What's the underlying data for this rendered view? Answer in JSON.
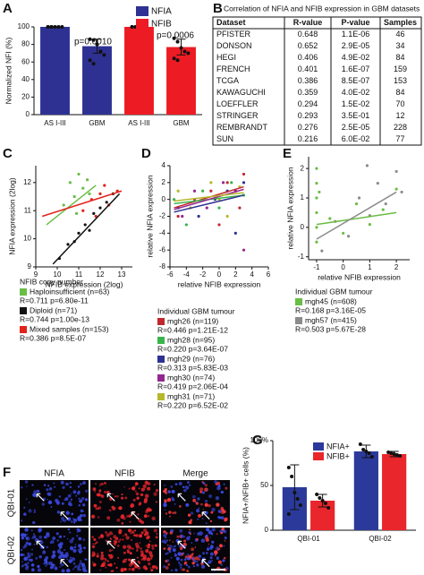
{
  "chart_data": [
    {
      "panel": "A",
      "type": "bar",
      "ylabel": "Normalized NFI (%)",
      "categories": [
        "AS I-III",
        "GBM",
        "AS I-III",
        "GBM"
      ],
      "ylim": [
        0,
        100
      ],
      "yticks": [
        0,
        20,
        40,
        60,
        80,
        100
      ],
      "series": [
        {
          "name": "NFIA",
          "color": "#2e3192",
          "values": [
            100,
            78,
            null,
            null
          ],
          "errors": [
            0,
            8,
            null,
            null
          ],
          "points": [
            [
              100,
              100,
              100,
              100,
              100,
              100,
              100
            ],
            [
              86,
              85,
              80,
              72,
              68,
              62,
              58
            ],
            null,
            null
          ]
        },
        {
          "name": "NFIB",
          "color": "#ed1c24",
          "values": [
            null,
            null,
            100,
            77
          ],
          "errors": [
            null,
            null,
            0,
            9
          ],
          "points": [
            null,
            null,
            [
              100,
              100,
              100,
              100,
              100,
              100,
              100
            ],
            [
              87,
              83,
              76,
              72,
              70,
              64,
              62
            ]
          ]
        }
      ],
      "annotations": [
        "p=0.0010",
        "p=0.0006"
      ]
    },
    {
      "panel": "C",
      "type": "scatter",
      "xlabel": "NFIB expression (2log)",
      "ylabel": "NFIA expression (2log)",
      "xlim": [
        9,
        13.5
      ],
      "xticks": [
        9,
        10,
        11,
        12,
        13
      ],
      "ylim": [
        9,
        12.6
      ],
      "yticks": [
        9,
        10,
        11,
        12
      ],
      "legend_title": "NFIB copy number",
      "series": [
        {
          "name": "Haploinsufficient (n=63)",
          "stats": "R=0.711 p=6.80e-11",
          "color": "#6abd45",
          "x": [
            10.3,
            10.6,
            10.8,
            11.0,
            11.2,
            11.4,
            10.9,
            11.5
          ],
          "y": [
            11.2,
            12.0,
            11.5,
            12.3,
            11.8,
            12.1,
            10.9,
            11.6
          ],
          "fit": {
            "x": [
              9.5,
              11.8
            ],
            "y": [
              10.5,
              11.9
            ]
          }
        },
        {
          "name": "Diploid (n=71)",
          "stats": "R=0.744 p=1.00e-13",
          "color": "#111111",
          "x": [
            10.1,
            10.5,
            11.0,
            11.3,
            11.7,
            12.0,
            12.3,
            12.6,
            11.5,
            10.8
          ],
          "y": [
            9.3,
            9.8,
            10.2,
            10.5,
            10.9,
            11.1,
            11.3,
            11.6,
            10.3,
            9.9
          ],
          "fit": {
            "x": [
              9.8,
              12.9
            ],
            "y": [
              9.1,
              11.6
            ]
          }
        },
        {
          "name": "Mixed samples (n=153)",
          "stats": "R=0.386 p=8.5E-07",
          "color": "#e2231a",
          "x": [
            11.2,
            11.6,
            12.0,
            12.4,
            12.8,
            11.8,
            12.2
          ],
          "y": [
            11.0,
            11.4,
            11.6,
            11.2,
            11.7,
            10.8,
            11.9
          ],
          "fit": {
            "x": [
              9.3,
              13.0
            ],
            "y": [
              10.8,
              11.7
            ]
          }
        }
      ]
    },
    {
      "panel": "D",
      "type": "scatter",
      "xlabel": "relative NFIB expression",
      "ylabel": "relative NFIA expression",
      "xlim": [
        -6,
        6
      ],
      "xticks": [
        -6,
        -4,
        -2,
        0,
        2,
        4,
        6
      ],
      "ylim": [
        -8,
        4
      ],
      "yticks": [
        -8,
        -6,
        -4,
        -2,
        0,
        2,
        4
      ],
      "legend_title": "Individual GBM tumour",
      "series": [
        {
          "name": "mgh26 (n=119)",
          "stats": "R=0.446 p=1.21E-12",
          "color": "#c1272d",
          "x": [
            -5,
            -3,
            -1,
            0,
            1,
            2,
            3,
            2.5
          ],
          "y": [
            -2,
            0,
            1,
            -3,
            2,
            1,
            3,
            -1
          ],
          "fit": {
            "x": [
              -5.5,
              3
            ],
            "y": [
              -1,
              1.5
            ]
          }
        },
        {
          "name": "mgh28 (n=95)",
          "stats": "R=0.220 p=3.64E-07",
          "color": "#39b54a",
          "x": [
            -5.5,
            -4,
            -2,
            0,
            1.5,
            3
          ],
          "y": [
            0,
            -3,
            1,
            -1,
            2,
            0.5
          ],
          "fit": {
            "x": [
              -5.5,
              3
            ],
            "y": [
              -0.5,
              0.5
            ]
          }
        },
        {
          "name": "mgh29 (n=76)",
          "stats": "R=0.313 p=5.83E-03",
          "color": "#2e3192",
          "x": [
            -5,
            -2.5,
            -0.5,
            1,
            2,
            3
          ],
          "y": [
            -1,
            -2,
            0,
            1,
            -4,
            2
          ],
          "fit": {
            "x": [
              -5.5,
              3
            ],
            "y": [
              -1.5,
              0.5
            ]
          }
        },
        {
          "name": "mgh30 (n=74)",
          "stats": "R=0.419 p=2.06E-04",
          "color": "#93278f",
          "x": [
            -4.5,
            -3,
            -1.5,
            0.5,
            2,
            3
          ],
          "y": [
            -2,
            1,
            -1,
            2,
            1,
            -6
          ],
          "fit": {
            "x": [
              -5.5,
              3
            ],
            "y": [
              -1.2,
              1.2
            ]
          }
        },
        {
          "name": "mgh31 (n=71)",
          "stats": "R=0.220 p=6.52E-02",
          "color": "#b5b82a",
          "x": [
            -5,
            -3.5,
            -1,
            0,
            1,
            2.5
          ],
          "y": [
            1,
            -1,
            2,
            0,
            -2,
            1.5
          ],
          "fit": {
            "x": [
              -5.5,
              3
            ],
            "y": [
              -0.2,
              0.8
            ]
          }
        }
      ]
    },
    {
      "panel": "E",
      "type": "scatter",
      "xlabel": "relative NFIB expression",
      "ylabel": "relative NFIA expression",
      "xlim": [
        -1.3,
        2.5
      ],
      "xticks": [
        -1,
        0,
        1,
        2
      ],
      "ylim": [
        -1.1,
        2.4
      ],
      "yticks": [
        -1,
        0,
        1,
        2
      ],
      "legend_title": "Individual GBM tumour",
      "series": [
        {
          "name": "mgh45 (n=608)",
          "stats": "R=0.168 p=3.16E-05",
          "color": "#6abd45",
          "x": [
            -1,
            -1,
            -1,
            -1,
            -1,
            -1,
            -0.9,
            -0.5,
            0,
            0.5,
            1,
            1.5,
            2
          ],
          "y": [
            2,
            1.5,
            1,
            0.5,
            0,
            -0.5,
            1.2,
            0.3,
            -0.2,
            0.8,
            0.1,
            0.6,
            1.3
          ],
          "fit": {
            "x": [
              -1,
              2
            ],
            "y": [
              0.1,
              0.5
            ]
          }
        },
        {
          "name": "mgh57 (n=415)",
          "stats": "R=0.503 p=5.67E-28",
          "color": "#8c8c8c",
          "x": [
            -0.8,
            -0.3,
            0.2,
            0.6,
            1,
            1.3,
            1.6,
            2,
            2.2,
            0.9
          ],
          "y": [
            -0.8,
            0.2,
            -0.3,
            1,
            0.4,
            1.5,
            0.8,
            1.9,
            1.2,
            2.1
          ],
          "fit": {
            "x": [
              -1,
              2
            ],
            "y": [
              -0.4,
              1.2
            ]
          }
        }
      ]
    },
    {
      "panel": "G",
      "type": "bar",
      "ylabel": "NFIA+/NFIB+ cells (%)",
      "categories": [
        "QBI-01",
        "QBI-02"
      ],
      "ylim": [
        0,
        100
      ],
      "yticks": [
        0,
        50,
        {
          "value": 100,
          "label": "100%"
        }
      ],
      "series": [
        {
          "name": "NFIA+",
          "color": "#2b3a9a",
          "values": [
            48,
            88
          ],
          "errors": [
            25,
            7
          ],
          "points": [
            [
              70,
              60,
              42,
              35,
              28,
              18
            ],
            [
              96,
              90,
              88,
              86,
              82
            ]
          ]
        },
        {
          "name": "NFIB+",
          "color": "#e8262c",
          "values": [
            33,
            85
          ],
          "errors": [
            7,
            3
          ],
          "points": [
            [
              40,
              36,
              33,
              30,
              25
            ],
            [
              87,
              86,
              85,
              84,
              83
            ]
          ]
        }
      ]
    }
  ],
  "table": {
    "panel": "B",
    "title": "Correlation of NFIA and NFIB expression in GBM datasets",
    "header": [
      "Dataset",
      "R-value",
      "P-value",
      "Samples"
    ],
    "rows": [
      [
        "PFISTER",
        "0.648",
        "1.1E-06",
        "46"
      ],
      [
        "DONSON",
        "0.652",
        "2.9E-05",
        "34"
      ],
      [
        "HEGI",
        "0.406",
        "4.9E-02",
        "84"
      ],
      [
        "FRENCH",
        "0.401",
        "1.6E-07",
        "159"
      ],
      [
        "TCGA",
        "0.386",
        "8.5E-07",
        "153"
      ],
      [
        "KAWAGUCHI",
        "0.359",
        "4.0E-02",
        "84"
      ],
      [
        "LOEFFLER",
        "0.294",
        "1.5E-02",
        "70"
      ],
      [
        "STRINGER",
        "0.293",
        "3.5E-01",
        "12"
      ],
      [
        "REMBRANDT",
        "0.276",
        "2.5E-05",
        "228"
      ],
      [
        "SUN",
        "0.216",
        "6.0E-02",
        "77"
      ]
    ]
  },
  "micrograph": {
    "panel": "F",
    "columns": [
      "NFIA",
      "NFIB",
      "Merge"
    ],
    "rows": [
      "QBI-01",
      "QBI-02"
    ]
  }
}
